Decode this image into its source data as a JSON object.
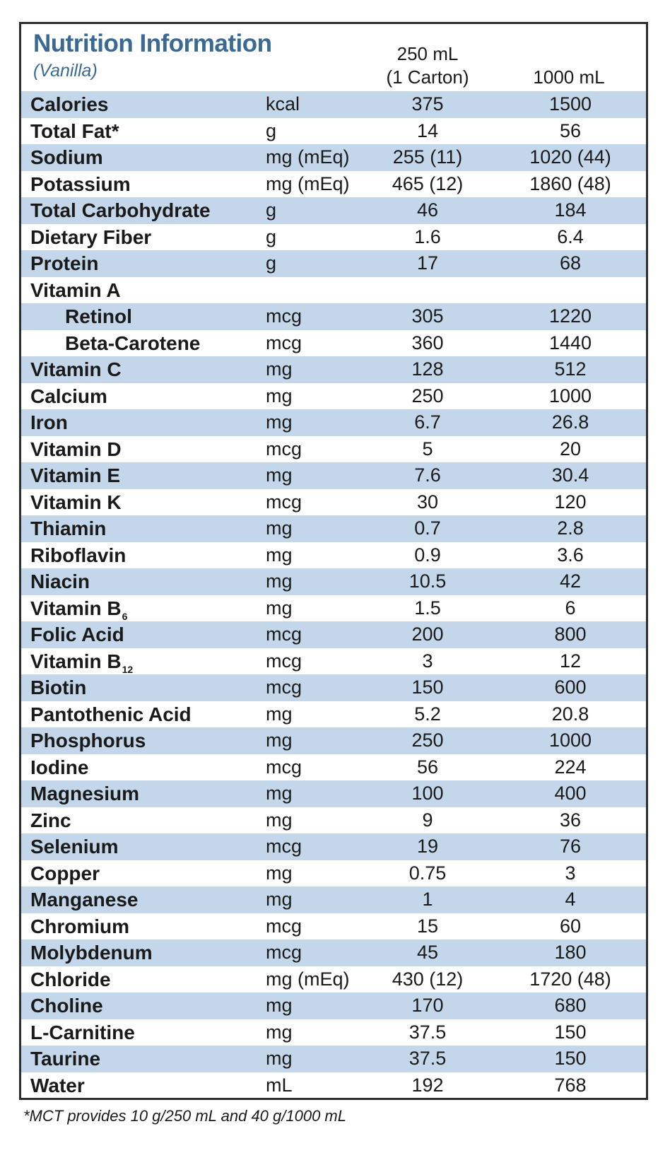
{
  "header": {
    "title": "Nutrition Information",
    "subtitle": "(Vanilla)",
    "col_250_line1": "250 mL",
    "col_250_line2": "(1 Carton)",
    "col_1000": "1000 mL"
  },
  "rows": [
    {
      "name": "Calories",
      "unit": "kcal",
      "v1": "375",
      "v2": "1500",
      "shaded": true
    },
    {
      "name": "Total Fat*",
      "unit": "g",
      "v1": "14",
      "v2": "56",
      "shaded": false
    },
    {
      "name": "Sodium",
      "unit": "mg (mEq)",
      "v1": "255 (11)",
      "v2": "1020 (44)",
      "shaded": true
    },
    {
      "name": "Potassium",
      "unit": "mg (mEq)",
      "v1": "465 (12)",
      "v2": "1860 (48)",
      "shaded": false
    },
    {
      "name": "Total Carbohydrate",
      "unit": "g",
      "v1": "46",
      "v2": "184",
      "shaded": true
    },
    {
      "name": "Dietary Fiber",
      "unit": "g",
      "v1": "1.6",
      "v2": "6.4",
      "shaded": false
    },
    {
      "name": "Protein",
      "unit": "g",
      "v1": "17",
      "v2": "68",
      "shaded": true
    },
    {
      "name": "Vitamin A",
      "unit": "",
      "v1": "",
      "v2": "",
      "shaded": false
    },
    {
      "name": "Retinol",
      "unit": "mcg",
      "v1": "305",
      "v2": "1220",
      "shaded": true,
      "indent": true
    },
    {
      "name": "Beta-Carotene",
      "unit": "mcg",
      "v1": "360",
      "v2": "1440",
      "shaded": false,
      "indent": true
    },
    {
      "name": "Vitamin C",
      "unit": "mg",
      "v1": "128",
      "v2": "512",
      "shaded": true
    },
    {
      "name": "Calcium",
      "unit": "mg",
      "v1": "250",
      "v2": "1000",
      "shaded": false
    },
    {
      "name": "Iron",
      "unit": "mg",
      "v1": "6.7",
      "v2": "26.8",
      "shaded": true
    },
    {
      "name": "Vitamin D",
      "unit": "mcg",
      "v1": "5",
      "v2": "20",
      "shaded": false
    },
    {
      "name": "Vitamin E",
      "unit": "mg",
      "v1": "7.6",
      "v2": "30.4",
      "shaded": true
    },
    {
      "name": "Vitamin K",
      "unit": "mcg",
      "v1": "30",
      "v2": "120",
      "shaded": false
    },
    {
      "name": "Thiamin",
      "unit": "mg",
      "v1": "0.7",
      "v2": "2.8",
      "shaded": true
    },
    {
      "name": "Riboflavin",
      "unit": "mg",
      "v1": "0.9",
      "v2": "3.6",
      "shaded": false
    },
    {
      "name": "Niacin",
      "unit": "mg",
      "v1": "10.5",
      "v2": "42",
      "shaded": true
    },
    {
      "name": "Vitamin B",
      "sub": "6",
      "unit": "mg",
      "v1": "1.5",
      "v2": "6",
      "shaded": false
    },
    {
      "name": "Folic Acid",
      "unit": "mcg",
      "v1": "200",
      "v2": "800",
      "shaded": true
    },
    {
      "name": "Vitamin B",
      "sub": "12",
      "unit": "mcg",
      "v1": "3",
      "v2": "12",
      "shaded": false
    },
    {
      "name": "Biotin",
      "unit": "mcg",
      "v1": "150",
      "v2": "600",
      "shaded": true
    },
    {
      "name": "Pantothenic Acid",
      "unit": "mg",
      "v1": "5.2",
      "v2": "20.8",
      "shaded": false
    },
    {
      "name": "Phosphorus",
      "unit": "mg",
      "v1": "250",
      "v2": "1000",
      "shaded": true
    },
    {
      "name": "Iodine",
      "unit": "mcg",
      "v1": "56",
      "v2": "224",
      "shaded": false
    },
    {
      "name": "Magnesium",
      "unit": "mg",
      "v1": "100",
      "v2": "400",
      "shaded": true
    },
    {
      "name": "Zinc",
      "unit": "mg",
      "v1": "9",
      "v2": "36",
      "shaded": false
    },
    {
      "name": "Selenium",
      "unit": "mcg",
      "v1": "19",
      "v2": "76",
      "shaded": true
    },
    {
      "name": "Copper",
      "unit": "mg",
      "v1": "0.75",
      "v2": "3",
      "shaded": false
    },
    {
      "name": "Manganese",
      "unit": "mg",
      "v1": "1",
      "v2": "4",
      "shaded": true
    },
    {
      "name": "Chromium",
      "unit": "mcg",
      "v1": "15",
      "v2": "60",
      "shaded": false
    },
    {
      "name": "Molybdenum",
      "unit": "mcg",
      "v1": "45",
      "v2": "180",
      "shaded": true
    },
    {
      "name": "Chloride",
      "unit": "mg (mEq)",
      "v1": "430 (12)",
      "v2": "1720 (48)",
      "shaded": false
    },
    {
      "name": "Choline",
      "unit": "mg",
      "v1": "170",
      "v2": "680",
      "shaded": true
    },
    {
      "name": "L-Carnitine",
      "unit": "mg",
      "v1": "37.5",
      "v2": "150",
      "shaded": false
    },
    {
      "name": "Taurine",
      "unit": "mg",
      "v1": "37.5",
      "v2": "150",
      "shaded": true
    },
    {
      "name": "Water",
      "unit": "mL",
      "v1": "192",
      "v2": "768",
      "shaded": false
    }
  ],
  "footnote": "*MCT provides 10 g/250 mL and 40 g/1000 mL",
  "colors": {
    "row_shade": "#c4d7ea",
    "title": "#3a6a93",
    "border": "#2d2d2d"
  }
}
